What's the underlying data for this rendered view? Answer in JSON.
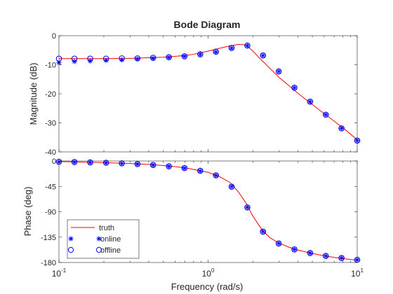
{
  "chart_data": {
    "type": "line",
    "title": "Bode Diagram",
    "xlabel": "Frequency  (rad/s)",
    "x_scale": "log",
    "xlim": [
      0.1,
      10
    ],
    "x_ticks": [
      {
        "value": 0.1,
        "base": "10",
        "exp": "-1"
      },
      {
        "value": 1,
        "base": "10",
        "exp": "0"
      },
      {
        "value": 10,
        "base": "10",
        "exp": "1"
      }
    ],
    "colors": {
      "truth": "#ff0000",
      "online": "#0000ff",
      "offline": "#0000ff"
    },
    "panels": [
      {
        "ylabel": "Magnitude (dB)",
        "ylim": [
          -40,
          0
        ],
        "yticks": [
          0,
          -10,
          -20,
          -30,
          -40
        ],
        "series": [
          {
            "name": "truth",
            "style": "line",
            "x": [
              0.1,
              0.15,
              0.2,
              0.3,
              0.4,
              0.5,
              0.6,
              0.7,
              0.8,
              1.0,
              1.2,
              1.4,
              1.6,
              1.75,
              1.85,
              2.0,
              2.2,
              2.5,
              3.0,
              3.5,
              4.0,
              5.0,
              6.0,
              7.0,
              8.0,
              10.0
            ],
            "y": [
              -7.9,
              -7.9,
              -7.9,
              -7.8,
              -7.6,
              -7.4,
              -7.1,
              -6.8,
              -6.4,
              -5.3,
              -4.3,
              -3.5,
              -3.0,
              -3.1,
              -3.8,
              -5.3,
              -7.6,
              -10.4,
              -14.4,
              -17.3,
              -19.8,
              -23.7,
              -26.8,
              -29.4,
              -31.7,
              -35.8
            ]
          },
          {
            "name": "online",
            "style": "star",
            "x": [
              0.1,
              0.127,
              0.162,
              0.207,
              0.264,
              0.336,
              0.428,
              0.546,
              0.695,
              0.886,
              1.129,
              1.438,
              1.833,
              2.336,
              2.976,
              3.793,
              4.833,
              6.158,
              7.848,
              10.0
            ],
            "y": [
              -9.3,
              -8.9,
              -8.7,
              -8.5,
              -8.3,
              -8.0,
              -7.8,
              -7.5,
              -7.1,
              -6.5,
              -5.6,
              -4.3,
              -3.4,
              -6.8,
              -12.3,
              -17.9,
              -22.7,
              -27.2,
              -31.9,
              -36.1
            ]
          },
          {
            "name": "offline",
            "style": "circle",
            "x": [
              0.1,
              0.127,
              0.162,
              0.207,
              0.264,
              0.336,
              0.428,
              0.546,
              0.695,
              0.886,
              1.129,
              1.438,
              1.833,
              2.336,
              2.976,
              3.793,
              4.833,
              6.158,
              7.848,
              10.0
            ],
            "y": [
              -7.9,
              -7.9,
              -7.9,
              -7.9,
              -7.8,
              -7.8,
              -7.6,
              -7.4,
              -7.1,
              -6.4,
              -5.5,
              -4.2,
              -3.4,
              -6.8,
              -12.3,
              -17.9,
              -22.7,
              -27.2,
              -31.9,
              -36.1
            ]
          }
        ]
      },
      {
        "ylabel": "Phase (deg)",
        "ylim": [
          -180,
          0
        ],
        "yticks": [
          0,
          -45,
          -90,
          -135,
          -180
        ],
        "legend": {
          "position": "bottom-left",
          "entries": [
            "truth",
            "online",
            "offline"
          ]
        },
        "series": [
          {
            "name": "truth",
            "style": "line",
            "x": [
              0.1,
              0.15,
              0.2,
              0.3,
              0.4,
              0.5,
              0.6,
              0.7,
              0.8,
              1.0,
              1.2,
              1.4,
              1.6,
              1.8,
              2.0,
              2.3,
              2.6,
              3.0,
              3.5,
              4.0,
              5.0,
              6.0,
              7.0,
              8.0,
              10.0
            ],
            "y": [
              -1,
              -2,
              -3,
              -4.5,
              -6,
              -8,
              -10,
              -12,
              -15,
              -20,
              -28,
              -38,
              -55,
              -75,
              -98,
              -122,
              -136,
              -146,
              -153,
              -158,
              -164,
              -168,
              -171,
              -173,
              -176
            ]
          },
          {
            "name": "online",
            "style": "star",
            "x": [
              0.1,
              0.127,
              0.162,
              0.207,
              0.264,
              0.336,
              0.428,
              0.546,
              0.695,
              0.886,
              1.129,
              1.438,
              1.833,
              2.336,
              2.976,
              3.793,
              4.833,
              6.158,
              7.848,
              10.0
            ],
            "y": [
              -1.5,
              -2.1,
              -2.6,
              -3.4,
              -4.3,
              -5.6,
              -7.3,
              -9.6,
              -12.7,
              -17.5,
              -25.6,
              -45.5,
              -82.3,
              -125.3,
              -146.2,
              -156.8,
              -163.2,
              -168.3,
              -172.0,
              -175.2
            ]
          },
          {
            "name": "offline",
            "style": "circle",
            "x": [
              0.1,
              0.127,
              0.162,
              0.207,
              0.264,
              0.336,
              0.428,
              0.546,
              0.695,
              0.886,
              1.129,
              1.438,
              1.833,
              2.336,
              2.976,
              3.793,
              4.833,
              6.158,
              7.848,
              10.0
            ],
            "y": [
              -1.3,
              -1.8,
              -2.4,
              -3.1,
              -4.1,
              -5.4,
              -7.1,
              -9.4,
              -12.5,
              -17.3,
              -25.4,
              -45.5,
              -82.3,
              -125.3,
              -146.2,
              -156.8,
              -163.2,
              -168.3,
              -172.0,
              -175.2
            ]
          }
        ]
      }
    ]
  }
}
